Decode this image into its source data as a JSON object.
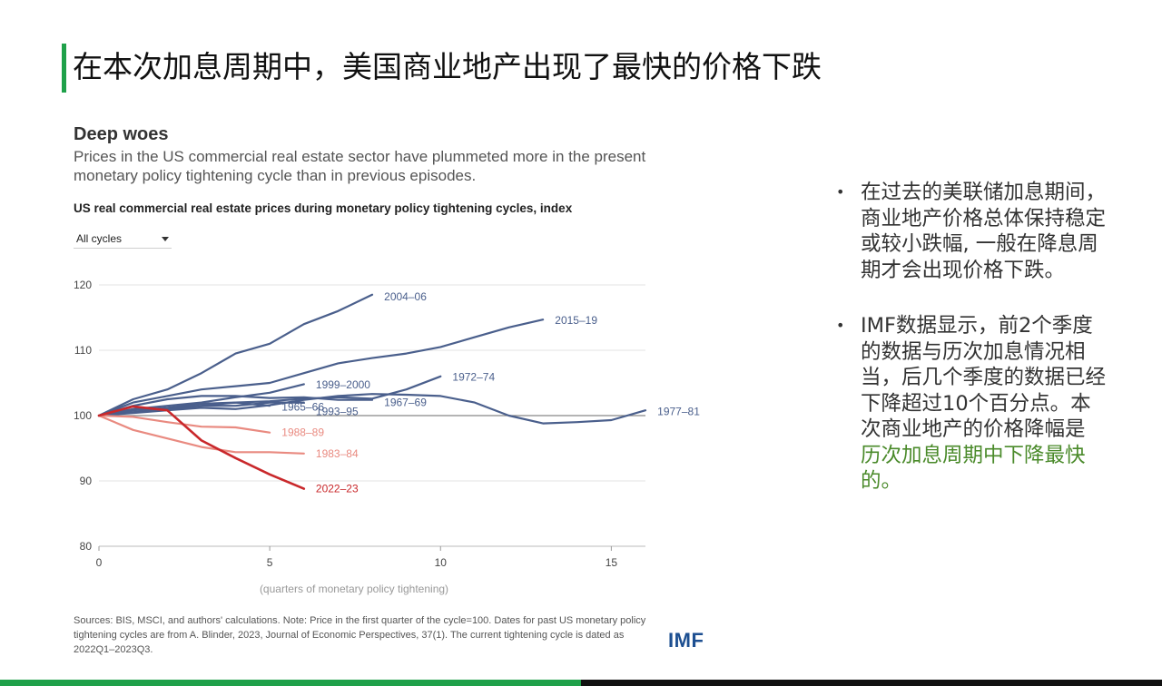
{
  "slide": {
    "title": "在本次加息周期中，美国商业地产出现了最快的价格下跌"
  },
  "chart_heading": "Deep woes",
  "chart_subtitle": "Prices in the US commercial real estate sector have plummeted more in the present monetary policy tightening cycle than in previous episodes.",
  "chart_caption": "US real commercial real estate prices during monetary policy tightening cycles, index",
  "dropdown": {
    "selected": "All cycles"
  },
  "chart_data": {
    "type": "line",
    "xlabel": "(quarters of monetary policy tightening)",
    "ylabel": "",
    "xlim": [
      0,
      16
    ],
    "ylim": [
      80,
      120
    ],
    "xticks": [
      0,
      5,
      10,
      15
    ],
    "yticks": [
      80,
      90,
      100,
      110,
      120
    ],
    "reference_line": 100,
    "series": [
      {
        "name": "2004–06",
        "color": "#4a5f8c",
        "x": [
          0,
          1,
          2,
          3,
          4,
          5,
          6,
          7,
          8
        ],
        "values": [
          100,
          102.5,
          104,
          106.5,
          109.5,
          111,
          114,
          116,
          118.5
        ]
      },
      {
        "name": "2015–19",
        "color": "#4a5f8c",
        "x": [
          0,
          1,
          2,
          3,
          4,
          5,
          6,
          7,
          8,
          9,
          10,
          11,
          12,
          13
        ],
        "values": [
          100,
          102,
          103,
          104,
          104.5,
          105,
          106.5,
          108,
          108.8,
          109.5,
          110.5,
          112,
          113.5,
          114.7
        ]
      },
      {
        "name": "1999–2000",
        "color": "#4a5f8c",
        "x": [
          0,
          1,
          2,
          3,
          4,
          5,
          6
        ],
        "values": [
          100,
          101,
          101.5,
          102,
          102.8,
          103.5,
          104.8
        ]
      },
      {
        "name": "1972–74",
        "color": "#4a5f8c",
        "x": [
          0,
          1,
          2,
          3,
          4,
          5,
          6,
          7,
          8,
          9,
          10
        ],
        "values": [
          100,
          100.5,
          101,
          101.5,
          102,
          102.2,
          102.6,
          102.8,
          102.6,
          104,
          106
        ]
      },
      {
        "name": "1967–69",
        "color": "#4a5f8c",
        "x": [
          0,
          1,
          2,
          3,
          4,
          5,
          6,
          7,
          8
        ],
        "values": [
          100,
          101.5,
          102.5,
          103,
          103,
          102.7,
          102.8,
          102.4,
          102.4
        ]
      },
      {
        "name": "1965–66",
        "color": "#4a5f8c",
        "x": [
          0,
          1,
          2,
          3,
          4,
          5
        ],
        "values": [
          100,
          100.8,
          101.2,
          101.8,
          102,
          101.5
        ]
      },
      {
        "name": "1993–95",
        "color": "#4a5f8c",
        "x": [
          0,
          1,
          2,
          3,
          4,
          5,
          6
        ],
        "values": [
          100,
          100.5,
          101,
          101.5,
          101.5,
          102,
          102
        ]
      },
      {
        "name": "1977–81",
        "color": "#4a5f8c",
        "x": [
          0,
          1,
          2,
          3,
          4,
          5,
          6,
          7,
          8,
          9,
          10,
          11,
          12,
          13,
          14,
          15,
          16
        ],
        "values": [
          100,
          100.4,
          100.8,
          101.2,
          101,
          101.6,
          102.4,
          103,
          103.3,
          103.2,
          103,
          102,
          100,
          98.8,
          99,
          99.3,
          100.8
        ]
      },
      {
        "name": "1988–89",
        "color": "#e98a80",
        "x": [
          0,
          1,
          2,
          3,
          4,
          5
        ],
        "values": [
          100,
          99.8,
          99,
          98.3,
          98.2,
          97.4
        ]
      },
      {
        "name": "1983–84",
        "color": "#e98a80",
        "x": [
          0,
          1,
          2,
          3,
          4,
          5,
          6
        ],
        "values": [
          100,
          97.8,
          96.5,
          95.2,
          94.4,
          94.4,
          94.2
        ]
      },
      {
        "name": "2022–23",
        "color": "#c9282b",
        "x": [
          0,
          1,
          2,
          3,
          4,
          5,
          6
        ],
        "values": [
          100,
          101.4,
          100.8,
          96.2,
          93.5,
          91,
          88.8
        ]
      }
    ],
    "labels": [
      {
        "text": "2004–06",
        "x": 8.35,
        "y": 118.2,
        "color": "#4a5f8c"
      },
      {
        "text": "2015–19",
        "x": 13.35,
        "y": 114.6,
        "color": "#4a5f8c"
      },
      {
        "text": "1999–2000",
        "x": 6.35,
        "y": 104.7,
        "color": "#4a5f8c"
      },
      {
        "text": "1972–74",
        "x": 10.35,
        "y": 105.9,
        "color": "#4a5f8c"
      },
      {
        "text": "1967–69",
        "x": 8.35,
        "y": 102.0,
        "color": "#4a5f8c"
      },
      {
        "text": "1965–66",
        "x": 5.35,
        "y": 101.3,
        "color": "#4a5f8c"
      },
      {
        "text": "1993–95",
        "x": 6.35,
        "y": 100.6,
        "color": "#4a5f8c"
      },
      {
        "text": "1977–81",
        "x": 16.35,
        "y": 100.6,
        "color": "#4a5f8c"
      },
      {
        "text": "1988–89",
        "x": 5.35,
        "y": 97.4,
        "color": "#e98a80"
      },
      {
        "text": "1983–84",
        "x": 6.35,
        "y": 94.2,
        "color": "#e98a80"
      },
      {
        "text": "2022–23",
        "x": 6.35,
        "y": 88.8,
        "color": "#c9282b"
      }
    ]
  },
  "sources": "Sources: BIS, MSCI, and authors' calculations. Note: Price in the first quarter of the cycle=100. Dates for past US monetary policy tightening cycles are from A. Blinder, 2023, Journal of Economic Perspectives, 37(1). The current tightening cycle is dated as 2022Q1–2023Q3.",
  "logo_text": "IMF",
  "bullets": {
    "b1": "在过去的美联储加息期间，商业地产价格总体保持稳定或较小跌幅, 一般在降息周期才会出现价格下跌。",
    "b2_prefix": "IMF数据显示，前2个季度的数据与历次加息情况相当，后几个季度的数据已经下降超过10个百分点。本次商业地产的价格降幅是",
    "b2_highlight": "历次加息周期中下降最快的。"
  },
  "colors": {
    "accent_green": "#1fa14a",
    "highlight_green": "#4a8a2a",
    "imf_blue": "#1d4f91"
  }
}
